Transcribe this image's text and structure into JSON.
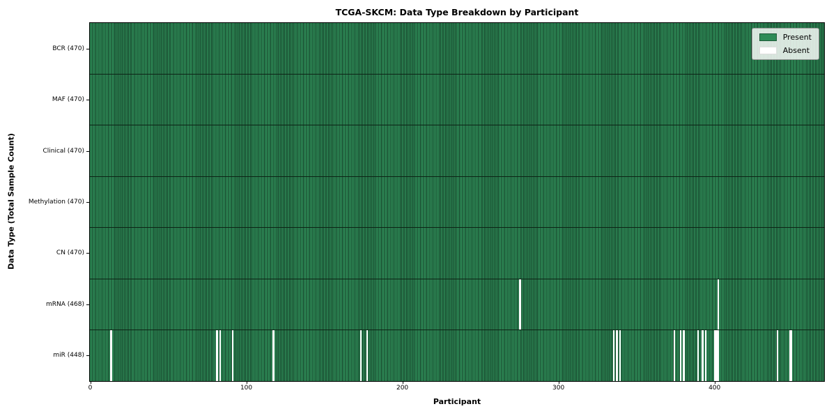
{
  "colors": {
    "present": "#2e8b57",
    "present_edge": "#16422a",
    "absent": "#ffffff",
    "row_separator": "#0c2315",
    "plot_border": "#000000",
    "legend_border": "#9a9a9a",
    "present_swatch_edge": "#1d5937",
    "absent_swatch_edge": "#dedede"
  },
  "legend": {
    "items": [
      {
        "label": "Present",
        "color": "#2e8b57"
      },
      {
        "label": "Absent",
        "color": "#ffffff"
      }
    ],
    "position": "upper right"
  },
  "chart_data": {
    "type": "heatmap",
    "title": "TCGA-SKCM: Data Type Breakdown by Participant",
    "xlabel": "Participant",
    "ylabel": "Data Type (Total Sample Count)",
    "x_ticks": [
      0,
      100,
      200,
      300,
      400
    ],
    "x_range": [
      0,
      470
    ],
    "n_participants": 470,
    "grid": false,
    "legend": [
      "Present",
      "Absent"
    ],
    "legend_position": "upper right",
    "rows": [
      {
        "label": "BCR (470)",
        "data_type": "BCR",
        "present_count": 470,
        "total": 470,
        "absent_participants": []
      },
      {
        "label": "MAF (470)",
        "data_type": "MAF",
        "present_count": 470,
        "total": 470,
        "absent_participants": []
      },
      {
        "label": "Clinical (470)",
        "data_type": "Clinical",
        "present_count": 470,
        "total": 470,
        "absent_participants": []
      },
      {
        "label": "Methylation (470)",
        "data_type": "Methylation",
        "present_count": 470,
        "total": 470,
        "absent_participants": []
      },
      {
        "label": "CN (470)",
        "data_type": "CN",
        "present_count": 470,
        "total": 470,
        "absent_participants": []
      },
      {
        "label": "mRNA (468)",
        "data_type": "mRNA",
        "present_count": 468,
        "total": 470,
        "absent_participants": [
          275,
          402
        ]
      },
      {
        "label": "miR (448)",
        "data_type": "miR",
        "present_count": 448,
        "total": 470,
        "absent_participants": [
          13,
          81,
          83,
          91,
          117,
          173,
          177,
          335,
          337,
          339,
          374,
          378,
          380,
          389,
          392,
          394,
          400,
          401,
          402,
          440,
          448,
          449
        ]
      }
    ]
  }
}
